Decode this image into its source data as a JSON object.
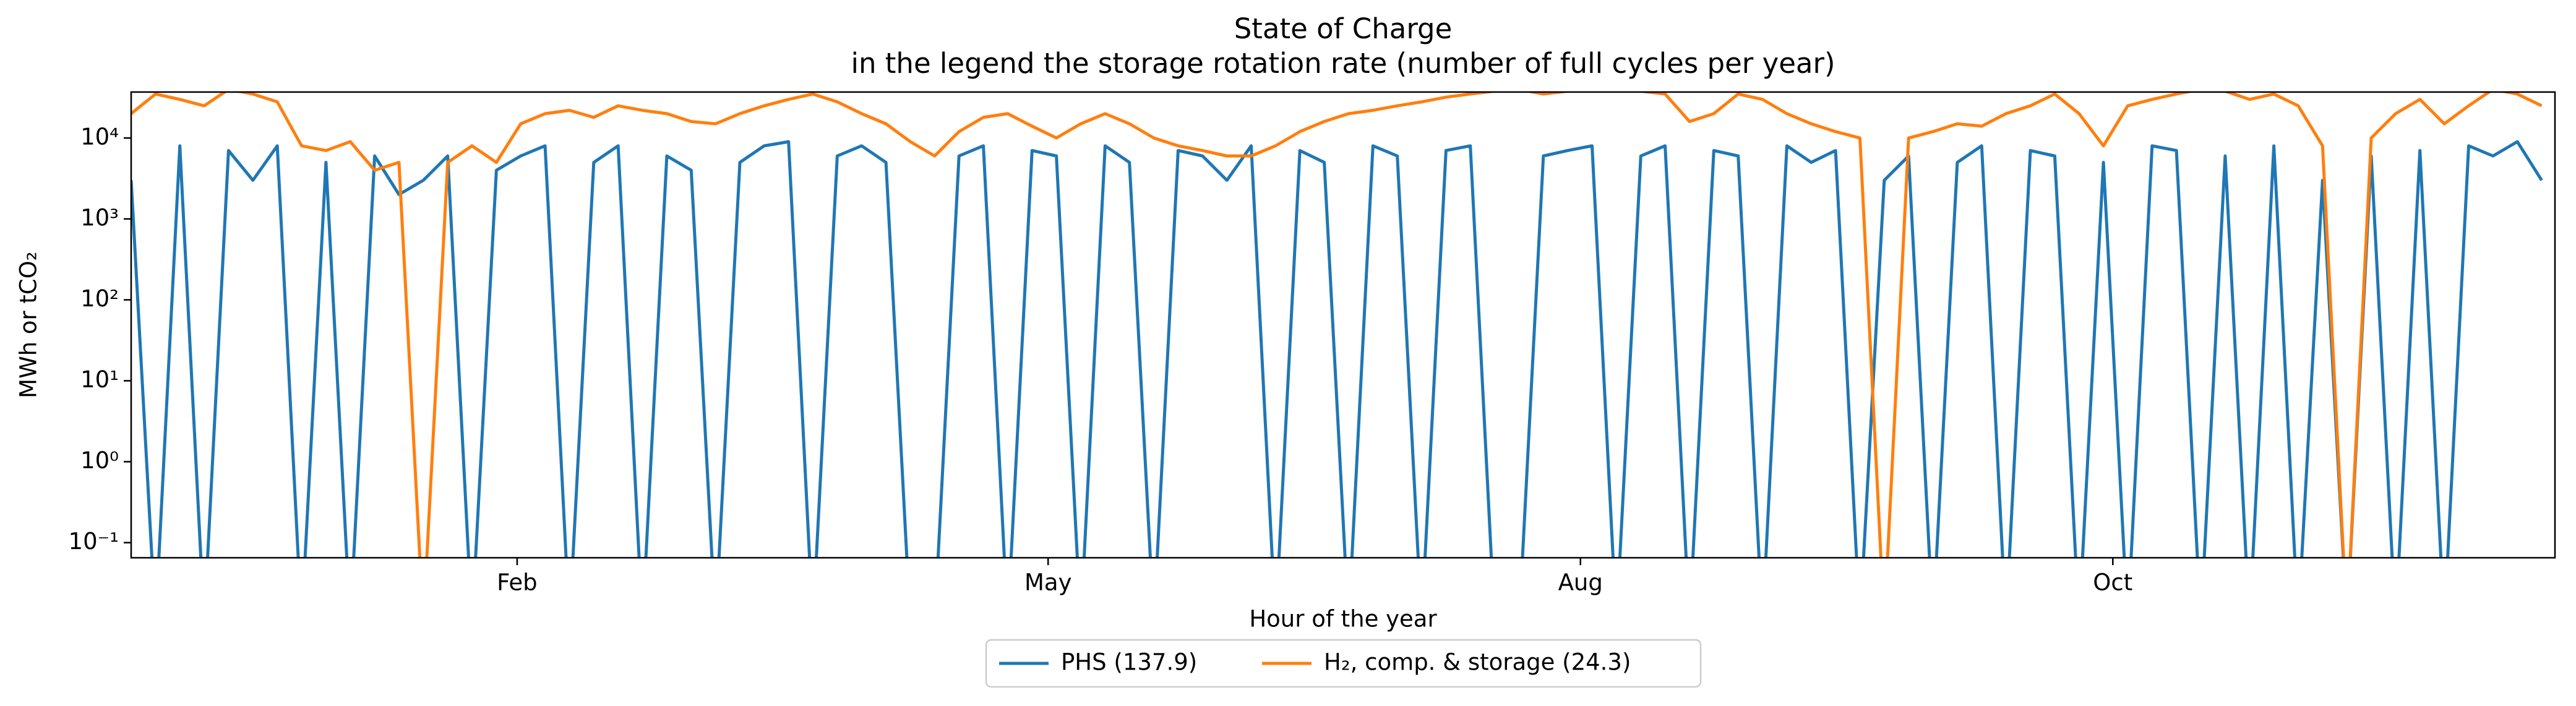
{
  "chart_data": {
    "type": "line",
    "title": "State of Charge",
    "subtitle": "in the legend the storage rotation rate (number of full cycles per year)",
    "x_label": "Hour of the year",
    "y_label": "MWh or tCO₂",
    "ylog": true,
    "grid": false,
    "legend": "below",
    "xlim": [
      0,
      8760
    ],
    "ylim": [
      0.065,
      37000
    ],
    "xticks": [
      {
        "value": 1395,
        "label": "Feb"
      },
      {
        "value": 3314,
        "label": "May"
      },
      {
        "value": 5238,
        "label": "Aug"
      },
      {
        "value": 7162,
        "label": "Oct"
      }
    ],
    "yticks": [
      {
        "value": 0.1,
        "label": "10⁻¹"
      },
      {
        "value": 1,
        "label": "10⁰"
      },
      {
        "value": 10,
        "label": "10¹"
      },
      {
        "value": 100,
        "label": "10²"
      },
      {
        "value": 1000,
        "label": "10³"
      },
      {
        "value": 10000,
        "label": "10⁴"
      }
    ],
    "x": [
      0,
      88,
      176,
      264,
      352,
      440,
      528,
      616,
      704,
      792,
      880,
      968,
      1056,
      1144,
      1232,
      1320,
      1408,
      1496,
      1584,
      1672,
      1760,
      1848,
      1936,
      2024,
      2112,
      2200,
      2288,
      2376,
      2464,
      2552,
      2640,
      2728,
      2816,
      2904,
      2992,
      3080,
      3168,
      3256,
      3344,
      3432,
      3520,
      3608,
      3696,
      3784,
      3872,
      3960,
      4048,
      4136,
      4224,
      4312,
      4400,
      4488,
      4576,
      4664,
      4752,
      4840,
      4928,
      5016,
      5104,
      5192,
      5280,
      5368,
      5456,
      5544,
      5632,
      5720,
      5808,
      5896,
      5984,
      6072,
      6160,
      6248,
      6336,
      6424,
      6512,
      6600,
      6688,
      6776,
      6864,
      6952,
      7040,
      7128,
      7216,
      7304,
      7392,
      7480,
      7568,
      7656,
      7744,
      7832,
      7920,
      8008,
      8096,
      8184,
      8272,
      8360,
      8448,
      8536,
      8624,
      8712
    ],
    "series": [
      {
        "name": "PHS (137.9)",
        "color": "#1f77b4",
        "values": [
          3000,
          0.01,
          8000,
          0.01,
          7000,
          3000,
          8000,
          0.01,
          5000,
          0.01,
          6000,
          2000,
          3000,
          6000,
          0.01,
          4000,
          6000,
          8000,
          0.01,
          5000,
          8000,
          0.01,
          6000,
          4000,
          0.01,
          5000,
          8000,
          9000,
          0.01,
          6000,
          8000,
          5000,
          0.01,
          0.01,
          6000,
          8000,
          0.01,
          7000,
          6000,
          0.01,
          8000,
          5000,
          0.01,
          7000,
          6000,
          3000,
          8000,
          0.01,
          7000,
          5000,
          0.01,
          8000,
          6000,
          0.01,
          7000,
          8000,
          0.01,
          0.01,
          6000,
          7000,
          8000,
          0.01,
          6000,
          8000,
          0.01,
          7000,
          6000,
          0.01,
          8000,
          5000,
          7000,
          0.01,
          3000,
          6000,
          0.01,
          5000,
          8000,
          0.01,
          7000,
          6000,
          0.01,
          5000,
          0.01,
          8000,
          7000,
          0.01,
          6000,
          0.01,
          8000,
          0.01,
          3000,
          0.01,
          6000,
          0.01,
          7000,
          0.01,
          8000,
          6000,
          9000,
          3000
        ]
      },
      {
        "name": "H₂, comp. & storage (24.3)",
        "color": "#ff7f0e",
        "values": [
          20000,
          35000,
          30000,
          25000,
          40000,
          35000,
          28000,
          8000,
          7000,
          9000,
          4000,
          5000,
          0.01,
          5000,
          8000,
          5000,
          15000,
          20000,
          22000,
          18000,
          25000,
          22000,
          20000,
          16000,
          15000,
          20000,
          25000,
          30000,
          35000,
          28000,
          20000,
          15000,
          9000,
          6000,
          12000,
          18000,
          20000,
          14000,
          10000,
          15000,
          20000,
          15000,
          10000,
          8000,
          7000,
          6000,
          6000,
          8000,
          12000,
          16000,
          20000,
          22000,
          25000,
          28000,
          32000,
          35000,
          38000,
          40000,
          35000,
          38000,
          40000,
          40000,
          38000,
          35000,
          16000,
          20000,
          35000,
          30000,
          20000,
          15000,
          12000,
          10000,
          0.01,
          10000,
          12000,
          15000,
          14000,
          20000,
          25000,
          35000,
          20000,
          8000,
          25000,
          30000,
          35000,
          40000,
          38000,
          30000,
          35000,
          25000,
          8000,
          0.01,
          10000,
          20000,
          30000,
          15000,
          25000,
          40000,
          35000,
          25000
        ]
      }
    ]
  }
}
